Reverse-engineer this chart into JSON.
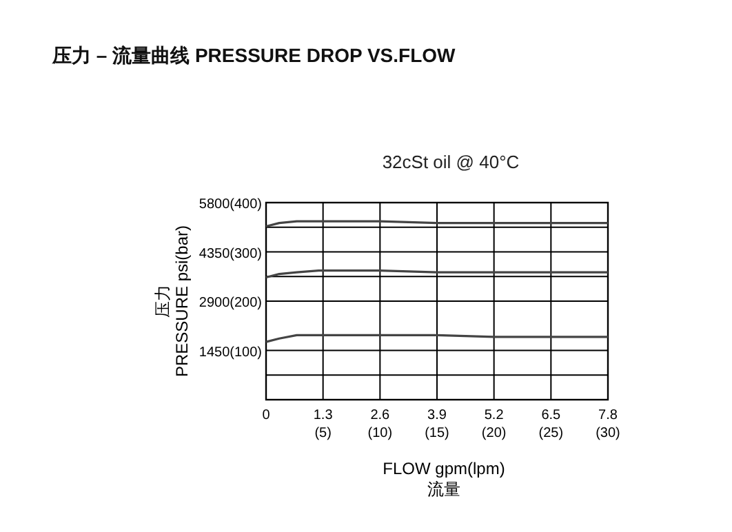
{
  "chart_data": {
    "type": "line",
    "title": "压力 – 流量曲线 PRESSURE DROP VS.FLOW",
    "subtitle": "32cSt oil @ 40°C",
    "xlabel": "FLOW gpm(lpm)\n流量",
    "ylabel": "压力\nPRESSURE psi(bar)",
    "xlim": [
      0,
      7.8
    ],
    "ylim": [
      0,
      5800
    ],
    "xticks": [
      0,
      1.3,
      2.6,
      3.9,
      5.2,
      6.5,
      7.8
    ],
    "x2lim": [
      0,
      30
    ],
    "x2ticks": [
      {
        "value": 5,
        "label": "(5)"
      },
      {
        "value": 10,
        "label": "(10)"
      },
      {
        "value": 15,
        "label": "(15)"
      },
      {
        "value": 20,
        "label": "(20)"
      },
      {
        "value": 25,
        "label": "(25)"
      },
      {
        "value": 30,
        "label": "(30)"
      }
    ],
    "yticks": [
      {
        "value": 725,
        "label": null
      },
      1450,
      2900,
      {
        "value": 3625,
        "label": null
      },
      4350,
      {
        "value": 5075,
        "label": null
      },
      5800
    ],
    "y2lim": [
      0,
      400
    ],
    "y2ticks": [
      {
        "value": 100,
        "label": "(100)"
      },
      {
        "value": 200,
        "label": "(200)"
      },
      {
        "value": 300,
        "label": "(300)"
      },
      {
        "value": 400,
        "label": "(400)"
      }
    ],
    "grid": true,
    "marker": "none",
    "line_style": "solid",
    "series": [
      {
        "color": "#444444",
        "x": [
          0,
          0.3,
          0.7,
          1.2,
          2.6,
          3.9,
          5.2,
          6.5,
          7.8
        ],
        "values": [
          5100,
          5200,
          5250,
          5250,
          5250,
          5200,
          5200,
          5200,
          5200
        ]
      },
      {
        "color": "#444444",
        "x": [
          0,
          0.3,
          0.7,
          1.2,
          2.6,
          3.9,
          5.2,
          6.5,
          7.8
        ],
        "values": [
          3600,
          3700,
          3750,
          3800,
          3800,
          3750,
          3750,
          3750,
          3750
        ]
      },
      {
        "color": "#444444",
        "x": [
          0,
          0.3,
          0.7,
          1.2,
          2.6,
          3.9,
          5.2,
          6.5,
          7.8
        ],
        "values": [
          1700,
          1800,
          1900,
          1900,
          1900,
          1900,
          1850,
          1850,
          1850
        ]
      }
    ]
  }
}
